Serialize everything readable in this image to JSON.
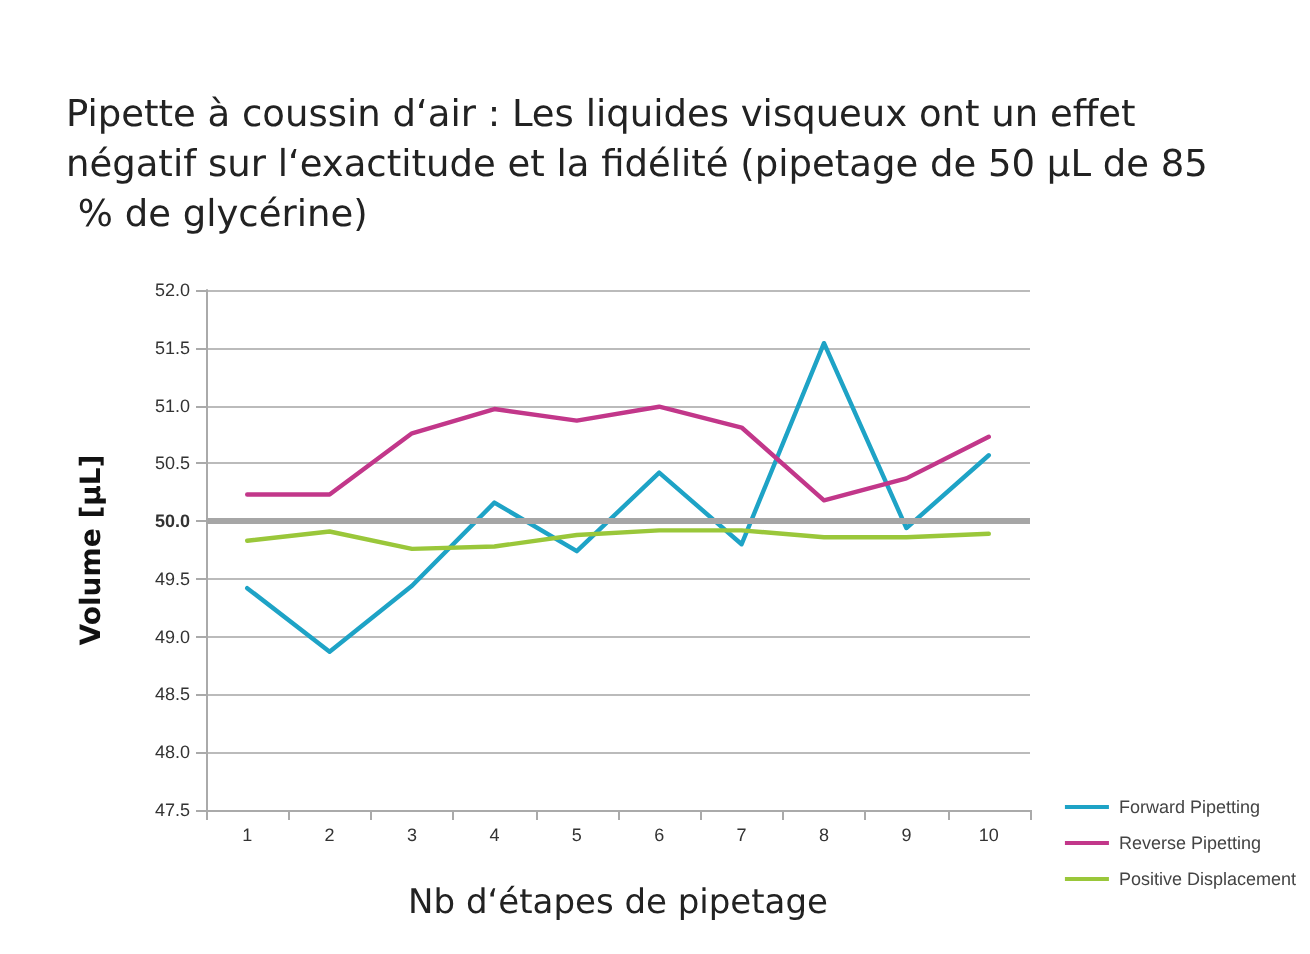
{
  "chart_data": {
    "type": "line",
    "title": "Pipette à coussin d‘air : Les liquides visqueux ont un effet négatif sur l‘exactitude et la fidélité (pipetage de 50 µL de 85 % de glycérine)",
    "xlabel": "Nb d‘étapes de pipetage",
    "ylabel": "Volume [µL]",
    "categories": [
      "1",
      "2",
      "3",
      "4",
      "5",
      "6",
      "7",
      "8",
      "9",
      "10"
    ],
    "series": [
      {
        "name": "Forward Pipetting",
        "color": "#1ea3c6",
        "values": [
          49.42,
          48.87,
          49.44,
          50.16,
          49.74,
          50.42,
          49.8,
          51.54,
          49.94,
          50.57
        ]
      },
      {
        "name": "Reverse Pipetting",
        "color": "#c2378a",
        "values": [
          50.23,
          50.23,
          50.76,
          50.97,
          50.87,
          50.99,
          50.81,
          50.18,
          50.37,
          50.73
        ]
      },
      {
        "name": "Positive Displacement",
        "color": "#9ac73a",
        "values": [
          49.83,
          49.91,
          49.76,
          49.78,
          49.88,
          49.92,
          49.92,
          49.86,
          49.86,
          49.89
        ]
      }
    ],
    "ylim": [
      47.5,
      52.0
    ],
    "yticks": [
      {
        "value": 47.5,
        "label": "47.5"
      },
      {
        "value": 48,
        "label": "48.0"
      },
      {
        "value": 48.5,
        "label": "48.5"
      },
      {
        "value": 49,
        "label": "49.0"
      },
      {
        "value": 49.5,
        "label": "49.5"
      },
      {
        "value": 50,
        "label": "50.0"
      },
      {
        "value": 50.5,
        "label": "50.5"
      },
      {
        "value": 51,
        "label": "51.0"
      },
      {
        "value": 51.5,
        "label": "51.5"
      },
      {
        "value": 52,
        "label": "52.0"
      }
    ],
    "ref_lines": [
      {
        "axis": "y",
        "value": 50,
        "color": "#a6a6a6"
      }
    ],
    "grid": "y",
    "legend": "bottom right",
    "marker": "none",
    "line_style": "solid"
  }
}
